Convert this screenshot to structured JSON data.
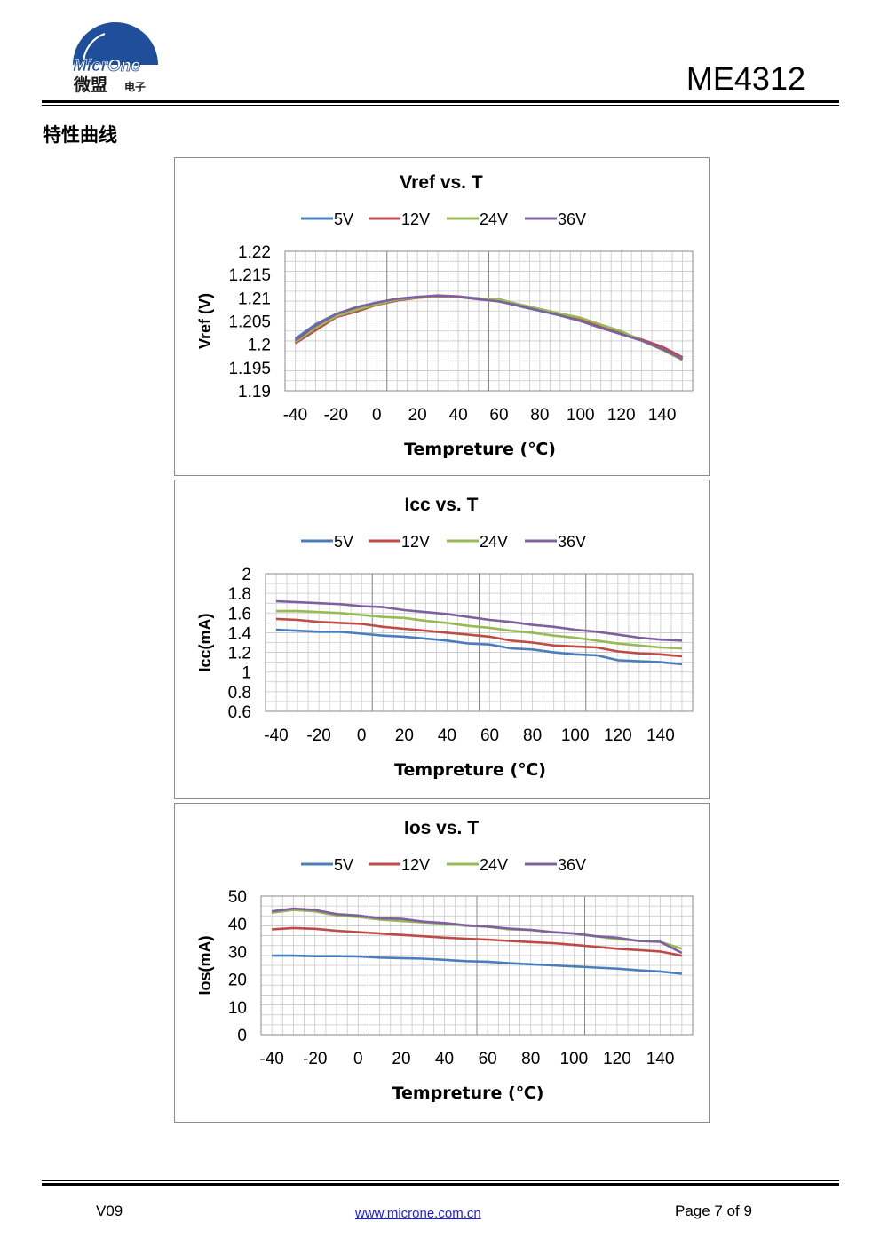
{
  "header": {
    "logo_text_en_1": "Micr",
    "logo_text_en_2": "One",
    "logo_text_cn": "微盟",
    "logo_text_cn_small": "电子",
    "part_number": "ME4312",
    "brand_color": "#1f4e9a"
  },
  "section_title": "特性曲线",
  "charts": [
    {
      "type": "line",
      "title": "Vref vs. T",
      "xlabel": "Tempreture (℃)",
      "ylabel": "Vref (V)",
      "xticks": [
        "-40",
        "-20",
        "0",
        "20",
        "40",
        "60",
        "80",
        "100",
        "120",
        "140"
      ],
      "yticks": [
        "1.19",
        "1.195",
        "1.2",
        "1.205",
        "1.21",
        "1.215",
        "1.22"
      ],
      "xlim": [
        -45,
        155
      ],
      "ylim": [
        1.19,
        1.22
      ],
      "x": [
        -40,
        -30,
        -20,
        -10,
        0,
        10,
        20,
        30,
        40,
        50,
        60,
        70,
        80,
        90,
        100,
        110,
        120,
        130,
        140,
        150
      ],
      "series": [
        {
          "name": "5V",
          "color": "#4a7ebb",
          "values": [
            1.2012,
            1.2043,
            1.2065,
            1.2078,
            1.2088,
            1.2098,
            1.2102,
            1.2104,
            1.2103,
            1.2099,
            1.2093,
            1.2082,
            1.2072,
            1.2062,
            1.205,
            1.2035,
            1.2022,
            1.2008,
            1.199,
            1.197
          ]
        },
        {
          "name": "12V",
          "color": "#be4b48",
          "values": [
            1.2002,
            1.203,
            1.2058,
            1.207,
            1.2085,
            1.2094,
            1.21,
            1.2103,
            1.2102,
            1.2097,
            1.2095,
            1.2085,
            1.2075,
            1.2065,
            1.2055,
            1.204,
            1.2025,
            1.201,
            1.1995,
            1.1972
          ]
        },
        {
          "name": "24V",
          "color": "#98b954",
          "values": [
            1.2005,
            1.2035,
            1.206,
            1.2074,
            1.2086,
            1.2096,
            1.2101,
            1.2104,
            1.2103,
            1.2098,
            1.2097,
            1.2086,
            1.2076,
            1.2066,
            1.2057,
            1.2042,
            1.2028,
            1.2008,
            1.1988,
            1.1966
          ]
        },
        {
          "name": "36V",
          "color": "#7d60a0",
          "values": [
            1.2008,
            1.204,
            1.2065,
            1.208,
            1.209,
            1.2098,
            1.2102,
            1.2105,
            1.2103,
            1.2097,
            1.2092,
            1.2083,
            1.2072,
            1.2062,
            1.205,
            1.2035,
            1.2022,
            1.2008,
            1.199,
            1.1968
          ]
        }
      ]
    },
    {
      "type": "line",
      "title": "Icc vs. T",
      "xlabel": "Tempreture (℃)",
      "ylabel": "Icc(mA)",
      "xticks": [
        "-40",
        "-20",
        "0",
        "20",
        "40",
        "60",
        "80",
        "100",
        "120",
        "140"
      ],
      "yticks": [
        "0.6",
        "0.8",
        "1",
        "1.2",
        "1.4",
        "1.6",
        "1.8",
        "2"
      ],
      "xlim": [
        -45,
        155
      ],
      "ylim": [
        0.6,
        2.0
      ],
      "x": [
        -40,
        -30,
        -20,
        -10,
        0,
        10,
        20,
        30,
        40,
        50,
        60,
        70,
        80,
        90,
        100,
        110,
        120,
        130,
        140,
        150
      ],
      "series": [
        {
          "name": "5V",
          "color": "#4a7ebb",
          "values": [
            1.43,
            1.42,
            1.41,
            1.41,
            1.39,
            1.37,
            1.36,
            1.34,
            1.32,
            1.29,
            1.28,
            1.24,
            1.23,
            1.2,
            1.18,
            1.17,
            1.12,
            1.11,
            1.1,
            1.08
          ]
        },
        {
          "name": "12V",
          "color": "#be4b48",
          "values": [
            1.54,
            1.53,
            1.51,
            1.5,
            1.49,
            1.46,
            1.44,
            1.42,
            1.4,
            1.38,
            1.36,
            1.32,
            1.3,
            1.27,
            1.26,
            1.25,
            1.21,
            1.19,
            1.18,
            1.16
          ]
        },
        {
          "name": "24V",
          "color": "#98b954",
          "values": [
            1.62,
            1.62,
            1.61,
            1.6,
            1.58,
            1.56,
            1.55,
            1.52,
            1.5,
            1.47,
            1.45,
            1.42,
            1.4,
            1.37,
            1.35,
            1.32,
            1.29,
            1.27,
            1.25,
            1.24
          ]
        },
        {
          "name": "36V",
          "color": "#7d60a0",
          "values": [
            1.72,
            1.71,
            1.7,
            1.69,
            1.67,
            1.66,
            1.63,
            1.61,
            1.59,
            1.56,
            1.53,
            1.51,
            1.48,
            1.46,
            1.43,
            1.41,
            1.38,
            1.35,
            1.33,
            1.32
          ]
        }
      ]
    },
    {
      "type": "line",
      "title": "Ios vs. T",
      "xlabel": "Tempreture (℃)",
      "ylabel": "Ios(mA)",
      "xticks": [
        "-40",
        "-20",
        "0",
        "20",
        "40",
        "60",
        "80",
        "100",
        "120",
        "140"
      ],
      "yticks": [
        "0",
        "10",
        "20",
        "30",
        "40",
        "50"
      ],
      "xlim": [
        -45,
        155
      ],
      "ylim": [
        0,
        50
      ],
      "x": [
        -40,
        -30,
        -20,
        -10,
        0,
        10,
        20,
        30,
        40,
        50,
        60,
        70,
        80,
        90,
        100,
        110,
        120,
        130,
        140,
        150
      ],
      "series": [
        {
          "name": "5V",
          "color": "#4a7ebb",
          "values": [
            28.5,
            28.5,
            28.3,
            28.3,
            28.2,
            27.8,
            27.6,
            27.4,
            27.0,
            26.5,
            26.3,
            25.8,
            25.4,
            25.0,
            24.6,
            24.2,
            23.8,
            23.2,
            22.8,
            22.0
          ]
        },
        {
          "name": "12V",
          "color": "#be4b48",
          "values": [
            38.0,
            38.5,
            38.2,
            37.5,
            37.0,
            36.5,
            36.0,
            35.5,
            35.0,
            34.6,
            34.3,
            33.8,
            33.4,
            33.0,
            32.4,
            31.7,
            31.0,
            30.5,
            30.0,
            28.5
          ]
        },
        {
          "name": "24V",
          "color": "#98b954",
          "values": [
            44.0,
            45.0,
            44.5,
            43.0,
            42.5,
            41.5,
            41.0,
            40.5,
            40.0,
            39.3,
            39.0,
            38.0,
            37.8,
            37.0,
            36.5,
            35.5,
            34.5,
            33.8,
            33.5,
            31.0
          ]
        },
        {
          "name": "36V",
          "color": "#7d60a0",
          "values": [
            44.5,
            45.5,
            45.0,
            43.5,
            43.0,
            42.0,
            41.8,
            40.8,
            40.3,
            39.5,
            39.0,
            38.3,
            37.8,
            37.0,
            36.5,
            35.5,
            35.0,
            33.8,
            33.5,
            29.5
          ]
        }
      ]
    }
  ],
  "footer": {
    "version": "V09",
    "url": "www.microne.com.cn",
    "page": "Page 7 of 9"
  }
}
